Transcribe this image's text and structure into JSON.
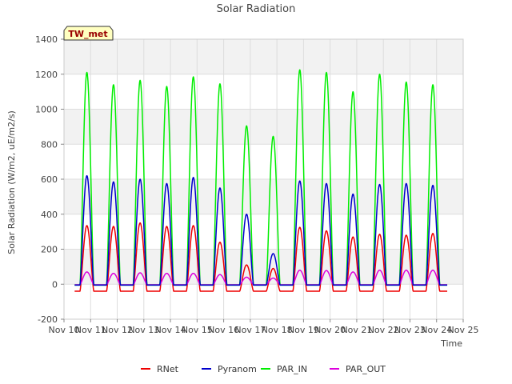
{
  "chart_data": {
    "type": "line",
    "title": "Solar Radiation",
    "xlabel": "Time",
    "ylabel": "Solar Radiation (W/m2, uE/m2/s)",
    "ylim": [
      -200,
      1400
    ],
    "xlim": [
      10,
      25
    ],
    "y_ticks": [
      -200,
      0,
      200,
      400,
      600,
      800,
      1000,
      1200,
      1400
    ],
    "x_tick_values": [
      10,
      11,
      12,
      13,
      14,
      15,
      16,
      17,
      18,
      19,
      20,
      21,
      22,
      23,
      24,
      25
    ],
    "x_tick_labels": [
      "Nov 10",
      "Nov 11",
      "Nov 12",
      "Nov 13",
      "Nov 14",
      "Nov 15",
      "Nov 16",
      "Nov 17",
      "Nov 18",
      "Nov 19",
      "Nov 20",
      "Nov 21",
      "Nov 22",
      "Nov 23",
      "Nov 24",
      "Nov 25"
    ],
    "grid": true,
    "legend_position": "bottom",
    "badge": "TW_met",
    "day_start": 10.4,
    "day_end": 24.4,
    "series": [
      {
        "name": "RNet",
        "color": "#ee0000",
        "night": -40,
        "peaks": [
          [
            10.86,
            335
          ],
          [
            11.86,
            330
          ],
          [
            12.86,
            350
          ],
          [
            13.86,
            330
          ],
          [
            14.86,
            335
          ],
          [
            15.86,
            240
          ],
          [
            16.86,
            110
          ],
          [
            17.86,
            90
          ],
          [
            18.86,
            325
          ],
          [
            19.86,
            305
          ],
          [
            20.86,
            270
          ],
          [
            21.86,
            285
          ],
          [
            22.86,
            280
          ],
          [
            23.86,
            290
          ]
        ]
      },
      {
        "name": "Pyranom",
        "color": "#0000cc",
        "night": -5,
        "peaks": [
          [
            10.86,
            620
          ],
          [
            11.86,
            585
          ],
          [
            12.86,
            600
          ],
          [
            13.86,
            575
          ],
          [
            14.86,
            610
          ],
          [
            15.86,
            550
          ],
          [
            16.86,
            400
          ],
          [
            17.86,
            175
          ],
          [
            18.86,
            590
          ],
          [
            19.86,
            575
          ],
          [
            20.86,
            515
          ],
          [
            21.86,
            570
          ],
          [
            22.86,
            575
          ],
          [
            23.86,
            565
          ]
        ]
      },
      {
        "name": "PAR_IN",
        "color": "#00ee00",
        "night": -5,
        "peaks": [
          [
            10.86,
            1210
          ],
          [
            11.86,
            1140
          ],
          [
            12.86,
            1165
          ],
          [
            13.86,
            1130
          ],
          [
            14.86,
            1185
          ],
          [
            15.86,
            1145
          ],
          [
            16.86,
            905
          ],
          [
            17.86,
            845
          ],
          [
            18.86,
            1225
          ],
          [
            19.86,
            1210
          ],
          [
            20.86,
            1100
          ],
          [
            21.86,
            1200
          ],
          [
            22.86,
            1155
          ],
          [
            23.86,
            1140
          ]
        ]
      },
      {
        "name": "PAR_OUT",
        "color": "#dd00dd",
        "night": -3,
        "peaks": [
          [
            10.86,
            70
          ],
          [
            11.86,
            62
          ],
          [
            12.86,
            65
          ],
          [
            13.86,
            62
          ],
          [
            14.86,
            62
          ],
          [
            15.86,
            55
          ],
          [
            16.86,
            40
          ],
          [
            17.86,
            35
          ],
          [
            18.86,
            80
          ],
          [
            19.86,
            78
          ],
          [
            20.86,
            70
          ],
          [
            21.86,
            80
          ],
          [
            22.86,
            80
          ],
          [
            23.86,
            80
          ]
        ]
      }
    ]
  }
}
